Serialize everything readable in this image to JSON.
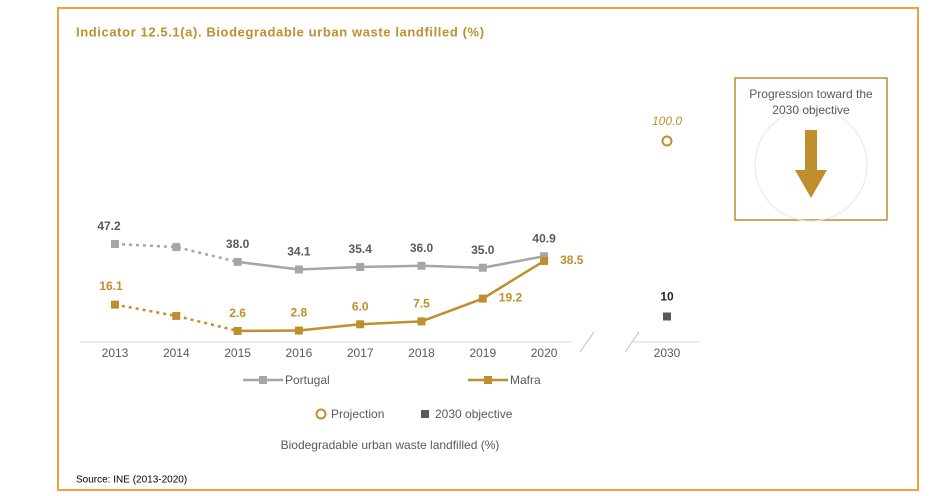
{
  "chart_data": {
    "type": "line",
    "title": "Indicator 12.5.1(a). Biodegradable urban waste landfilled (%)",
    "categories": [
      "2013",
      "2014",
      "2015",
      "2016",
      "2017",
      "2018",
      "2019",
      "2020"
    ],
    "dotted_until": "2015",
    "series": [
      {
        "name": "Portugal",
        "color": "#a6a6a6",
        "label_color": "#595959",
        "values": [
          47.2,
          45.6,
          38.0,
          34.1,
          35.4,
          36.0,
          35.0,
          40.9
        ],
        "value_labels": [
          "47.2",
          null,
          "38.0",
          "34.1",
          "35.4",
          "36.0",
          "35.0",
          "40.9"
        ]
      },
      {
        "name": "Mafra",
        "color": "#bf8f2e",
        "label_color": "#bf8f2e",
        "values": [
          16.1,
          10.3,
          2.6,
          2.8,
          6.0,
          7.5,
          19.2,
          38.5
        ],
        "value_labels": [
          "16.1",
          null,
          "2.6",
          "2.8",
          "6.0",
          "7.5",
          "19.2",
          "38.5"
        ]
      }
    ],
    "target_category": "2030",
    "projection": {
      "name": "Projection",
      "value": 100,
      "value_label": "100.0",
      "color": "#bf8f2e"
    },
    "objective": {
      "name": "2030 objective",
      "value": 10,
      "color": "#595959"
    },
    "ylim": [
      0,
      100
    ],
    "legend_caption": "Biodegradable urban waste landfilled (%)",
    "note": "Progression toward the 2030 objective",
    "source": "Source: INE (2013-2020)"
  }
}
